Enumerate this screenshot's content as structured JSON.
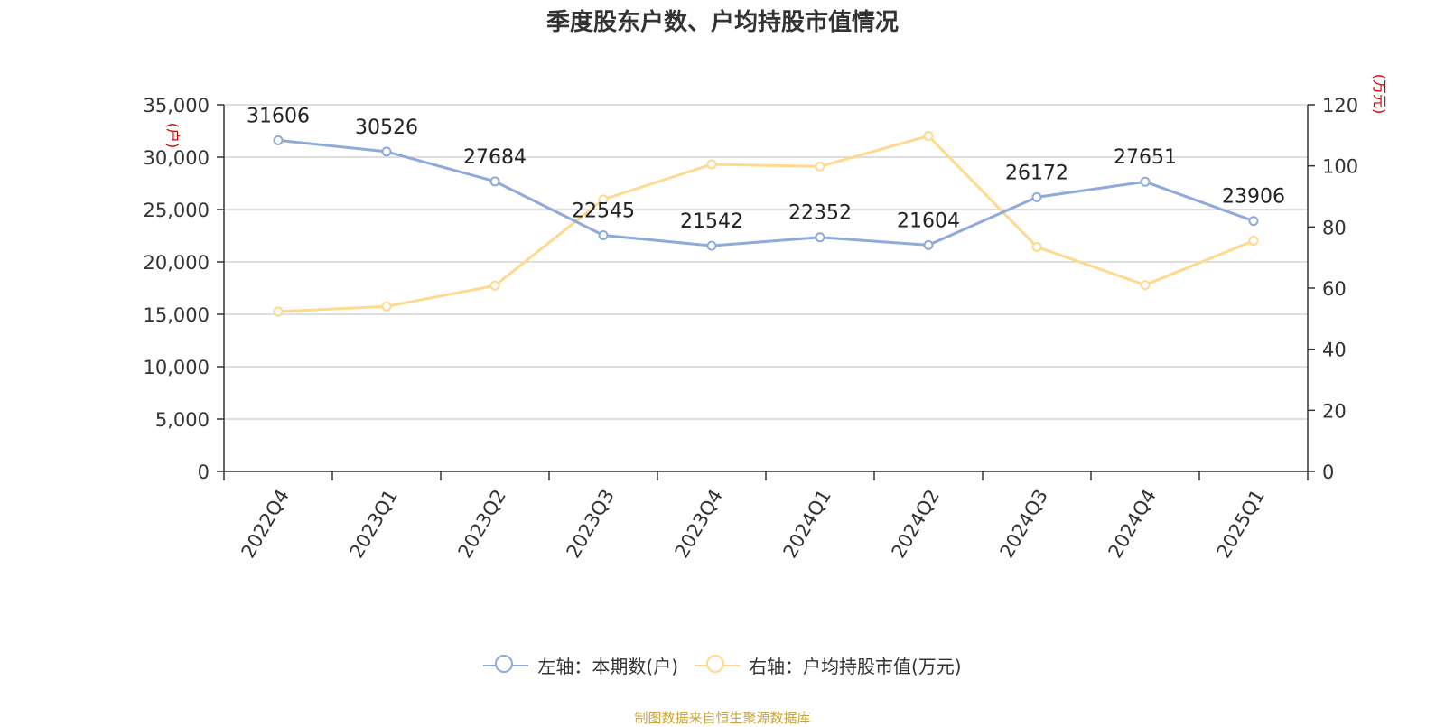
{
  "chart_data": {
    "type": "line",
    "title": "季度股东户数、户均持股市值情况",
    "categories": [
      "2022Q4",
      "2023Q1",
      "2023Q2",
      "2023Q3",
      "2023Q4",
      "2024Q1",
      "2024Q2",
      "2024Q3",
      "2024Q4",
      "2025Q1"
    ],
    "left_axis": {
      "unit_label": "(户)",
      "ylim": [
        0,
        35000
      ],
      "ticks": [
        "0",
        "5,000",
        "10,000",
        "15,000",
        "20,000",
        "25,000",
        "30,000",
        "35,000"
      ]
    },
    "right_axis": {
      "unit_label": "(万元)",
      "ylim": [
        0,
        120
      ],
      "ticks": [
        "0",
        "20",
        "40",
        "60",
        "80",
        "100",
        "120"
      ]
    },
    "series": [
      {
        "name": "左轴：本期数(户)",
        "axis": "left",
        "color": "#8eaadb",
        "values": [
          31606,
          30526,
          27684,
          22545,
          21542,
          22352,
          21604,
          26172,
          27651,
          23906
        ],
        "labels": [
          "31606",
          "30526",
          "27684",
          "22545",
          "21542",
          "22352",
          "21604",
          "26172",
          "27651",
          "23906"
        ]
      },
      {
        "name": "右轴：户均持股市值(万元)",
        "axis": "right",
        "color": "#ffd98e",
        "values": [
          52.3,
          54.0,
          60.8,
          89.0,
          100.5,
          99.8,
          109.8,
          73.5,
          61.0,
          75.5
        ]
      }
    ],
    "grid": true,
    "legend": "bottom-center"
  },
  "footer": {
    "source": "制图数据来自恒生聚源数据库"
  },
  "colors": {
    "axis_unit": "#e00000",
    "grid": "#cccccc",
    "axis_line": "#333333"
  }
}
